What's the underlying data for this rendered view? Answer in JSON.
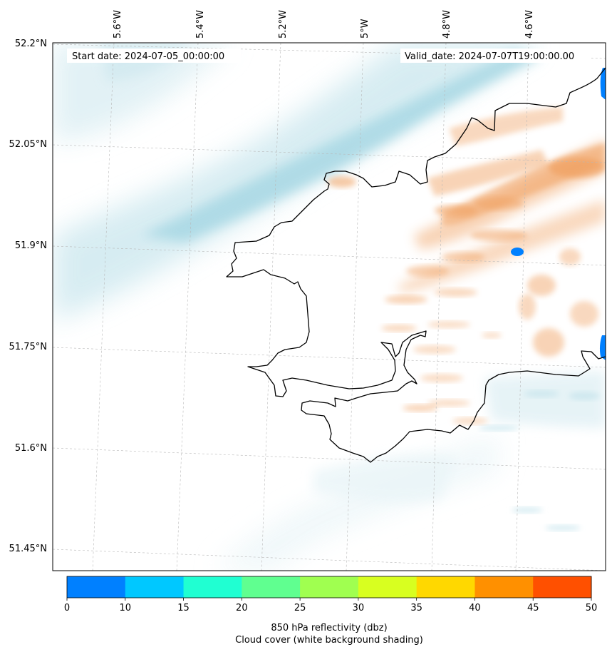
{
  "header": {
    "start_date": "Start date: 2024-07-05_00:00:00",
    "valid_date": "Valid_date: 2024-07-07T19:00:00.00"
  },
  "axes": {
    "longitude_ticks": [
      "5.6°W",
      "5.4°W",
      "5.2°W",
      "5°W",
      "4.8°W",
      "4.6°W"
    ],
    "latitude_ticks": [
      "52.2°N",
      "52.05°N",
      "51.9°N",
      "51.75°N",
      "51.6°N",
      "51.45°N"
    ]
  },
  "colorbar": {
    "ticks": [
      "0",
      "10",
      "15",
      "20",
      "25",
      "30",
      "35",
      "40",
      "45",
      "50"
    ],
    "colors": [
      "#0080ff",
      "#00c8ff",
      "#20ffd2",
      "#60ff90",
      "#a0ff50",
      "#d8ff20",
      "#ffd800",
      "#ff9000",
      "#ff5000"
    ],
    "label_line1": "850 hPa reflectivity (dbz)",
    "label_line2": "Cloud cover (white background shading)"
  },
  "colors": {
    "cloud": "#a8d8e4",
    "reflectivity_low": "#f0a060",
    "reflectivity_blue": "#0080ff",
    "coast": "#000000"
  }
}
